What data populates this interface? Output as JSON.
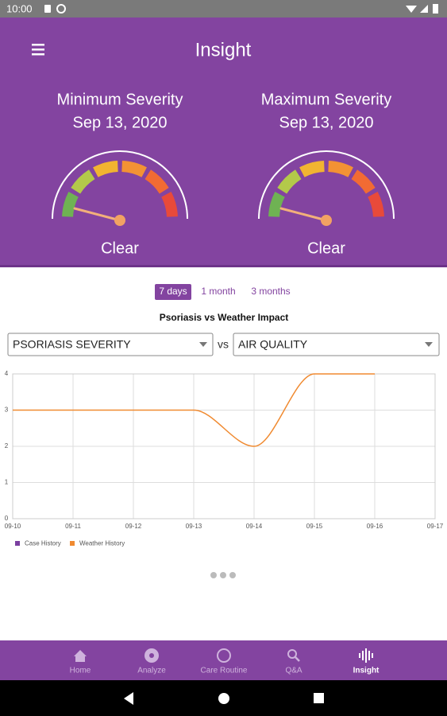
{
  "status_bar": {
    "time": "10:00"
  },
  "header": {
    "title": "Insight"
  },
  "gauges": [
    {
      "title": "Minimum Severity",
      "date": "Sep 13, 2020",
      "level": "Clear"
    },
    {
      "title": "Maximum Severity",
      "date": "Sep 13, 2020",
      "level": "Clear"
    }
  ],
  "range_tabs": {
    "items": [
      "7 days",
      "1 month",
      "3 months"
    ],
    "selected": 0
  },
  "selectors": {
    "left": "PSORIASIS SEVERITY",
    "vs": "vs",
    "right": "AIR QUALITY"
  },
  "chart_data": {
    "type": "line",
    "title": "Psoriasis vs Weather Impact",
    "x": [
      "09-10",
      "09-11",
      "09-12",
      "09-13",
      "09-14",
      "09-15",
      "09-16",
      "09-17"
    ],
    "series": [
      {
        "name": "Case History",
        "color": "#7b3fa0",
        "values": [
          null,
          null,
          null,
          null,
          null,
          null,
          null,
          null
        ]
      },
      {
        "name": "Weather History",
        "color": "#f08a30",
        "values": [
          3,
          3,
          3,
          3,
          2,
          4,
          4,
          null
        ]
      }
    ],
    "ylim": [
      0,
      4
    ],
    "yticks": [
      0,
      1,
      2,
      3,
      4
    ],
    "grid": true
  },
  "nav": {
    "items": [
      "Home",
      "Analyze",
      "Care Routine",
      "Q&A",
      "Insight"
    ],
    "selected": 4
  }
}
